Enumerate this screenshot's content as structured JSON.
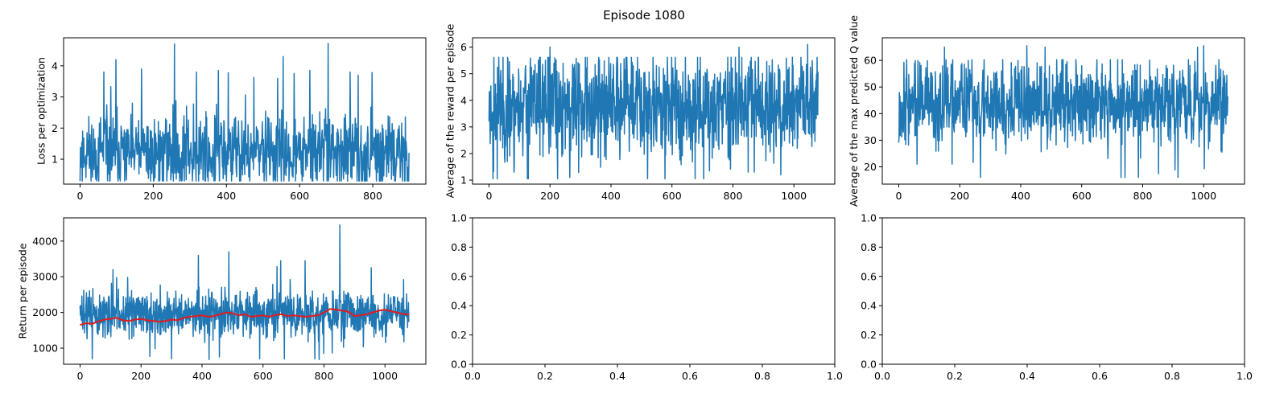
{
  "figure": {
    "suptitle": "Episode 1080"
  },
  "colors": {
    "series": "#1f77b4",
    "smoothed": "#e41a1c",
    "axes": "#000000",
    "background": "#ffffff"
  },
  "chart_data": [
    {
      "id": "loss",
      "type": "line",
      "xlabel": "",
      "ylabel": "Loss per optimization",
      "xlim": [
        -45,
        945
      ],
      "ylim": [
        0.2,
        4.9
      ],
      "xticks": [
        0,
        200,
        400,
        600,
        800
      ],
      "yticks": [
        1,
        2,
        3,
        4
      ],
      "grid": false,
      "series": [
        {
          "n": 900,
          "x_start": 0,
          "x_end": 899,
          "base": 1.2,
          "spread": 0.85,
          "min": 0.3,
          "max": 4.7,
          "seed": 11,
          "peaks": [
            [
              258,
              4.7
            ],
            [
              678,
              4.72
            ],
            [
              98,
              4.2
            ],
            [
              168,
              3.9
            ],
            [
              318,
              3.8
            ],
            [
              378,
              3.85
            ],
            [
              628,
              3.85
            ],
            [
              738,
              3.8
            ],
            [
              65,
              3.8
            ],
            [
              585,
              3.75
            ],
            [
              760,
              3.7
            ],
            [
              540,
              3.6
            ]
          ]
        }
      ]
    },
    {
      "id": "reward",
      "type": "line",
      "xlabel": "",
      "ylabel": "Average of the reward per episode",
      "xlim": [
        -54,
        1134
      ],
      "ylim": [
        0.85,
        6.35
      ],
      "xticks": [
        0,
        200,
        400,
        600,
        800,
        1000
      ],
      "yticks": [
        1,
        2,
        3,
        4,
        5,
        6
      ],
      "grid": false,
      "series": [
        {
          "n": 1080,
          "x_start": 0,
          "x_end": 1079,
          "base": 3.8,
          "spread": 1.3,
          "min": 1.05,
          "max": 6.1,
          "seed": 23,
          "peaks": [
            [
              1045,
              6.1
            ],
            [
              200,
              6.0
            ],
            [
              820,
              6.0
            ],
            [
              225,
              1.05
            ],
            [
              265,
              1.1
            ],
            [
              870,
              1.3
            ],
            [
              850,
              1.3
            ],
            [
              60,
              1.7
            ]
          ]
        }
      ]
    },
    {
      "id": "qvalue",
      "type": "line",
      "xlabel": "",
      "ylabel": "Average of the max predicted Q value",
      "xlim": [
        -54,
        1134
      ],
      "ylim": [
        13.5,
        68.5
      ],
      "xticks": [
        0,
        200,
        400,
        600,
        800,
        1000
      ],
      "yticks": [
        20,
        30,
        40,
        50,
        60
      ],
      "grid": false,
      "series": [
        {
          "n": 1080,
          "x_start": 0,
          "x_end": 1079,
          "base": 44,
          "spread": 10.5,
          "min": 16,
          "max": 65.5,
          "seed": 37,
          "peaks": [
            [
              268,
              16
            ],
            [
              60,
              21
            ],
            [
              175,
              21
            ],
            [
              1060,
              25.5
            ],
            [
              150,
              65
            ],
            [
              420,
              65.5
            ],
            [
              1000,
              65.5
            ],
            [
              480,
              65
            ],
            [
              980,
              65
            ]
          ]
        }
      ]
    },
    {
      "id": "return",
      "type": "line",
      "xlabel": "",
      "ylabel": "Return per episode",
      "xlim": [
        -54,
        1134
      ],
      "ylim": [
        550,
        4650
      ],
      "xticks": [
        0,
        200,
        400,
        600,
        800,
        1000
      ],
      "yticks": [
        1000,
        2000,
        3000,
        4000
      ],
      "grid": false,
      "series": [
        {
          "name": "",
          "n": 1080,
          "x_start": 0,
          "x_end": 1079,
          "base": 1950,
          "spread": 430,
          "min": 680,
          "max": 4450,
          "seed": 51,
          "peaks": [
            [
              852,
              4450
            ],
            [
              488,
              3700
            ],
            [
              388,
              3600
            ],
            [
              658,
              3450
            ],
            [
              738,
              3450
            ],
            [
              955,
              3250
            ],
            [
              108,
              3200
            ],
            [
              300,
              700
            ],
            [
              40,
              700
            ],
            [
              770,
              700
            ],
            [
              670,
              700
            ]
          ]
        }
      ],
      "smoothed": {
        "x": [
          0,
          20,
          40,
          60,
          80,
          100,
          120,
          140,
          160,
          180,
          200,
          220,
          240,
          260,
          280,
          300,
          320,
          340,
          360,
          380,
          400,
          420,
          440,
          460,
          480,
          500,
          520,
          540,
          560,
          580,
          600,
          620,
          640,
          660,
          680,
          700,
          720,
          740,
          760,
          780,
          800,
          820,
          840,
          860,
          880,
          900,
          920,
          940,
          960,
          980,
          1000,
          1020,
          1040,
          1060,
          1079
        ],
        "y": [
          1650,
          1700,
          1680,
          1750,
          1800,
          1820,
          1850,
          1780,
          1760,
          1800,
          1820,
          1780,
          1760,
          1740,
          1760,
          1800,
          1780,
          1850,
          1880,
          1900,
          1920,
          1880,
          1900,
          1950,
          2000,
          1980,
          1920,
          1950,
          1880,
          1900,
          1920,
          1880,
          1930,
          1950,
          1900,
          1920,
          1900,
          1880,
          1900,
          1920,
          2000,
          2100,
          2080,
          2050,
          2020,
          1900,
          1920,
          1950,
          2000,
          2050,
          2080,
          2030,
          2000,
          1950,
          1950
        ]
      }
    },
    {
      "id": "empty-1",
      "type": "line",
      "xlabel": "",
      "ylabel": "",
      "xlim": [
        0,
        1
      ],
      "ylim": [
        0,
        1
      ],
      "xticks": [
        0.0,
        0.2,
        0.4,
        0.6,
        0.8,
        1.0
      ],
      "yticks": [
        0.0,
        0.2,
        0.4,
        0.6,
        0.8,
        1.0
      ],
      "tick_format": "1f",
      "grid": false,
      "series": []
    },
    {
      "id": "empty-2",
      "type": "line",
      "xlabel": "",
      "ylabel": "",
      "xlim": [
        0,
        1
      ],
      "ylim": [
        0,
        1
      ],
      "xticks": [
        0.0,
        0.2,
        0.4,
        0.6,
        0.8,
        1.0
      ],
      "yticks": [
        0.0,
        0.2,
        0.4,
        0.6,
        0.8,
        1.0
      ],
      "tick_format": "1f",
      "grid": false,
      "series": []
    }
  ]
}
